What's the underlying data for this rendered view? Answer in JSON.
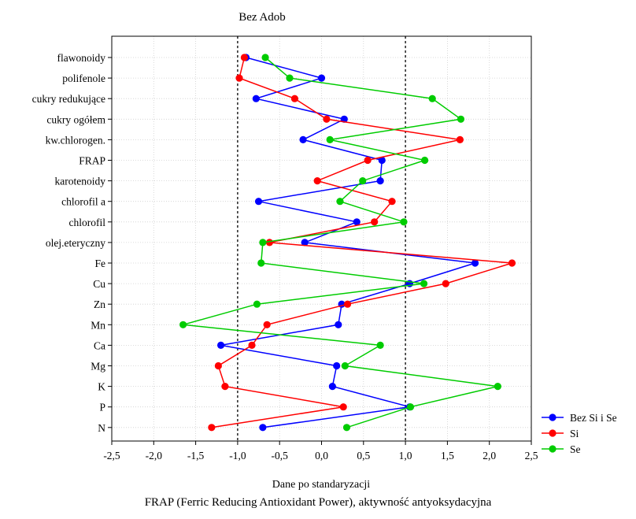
{
  "chart_data": {
    "type": "line",
    "orientation": "horizontal-categories-on-y",
    "title": "Bez Adob",
    "xlabel": "Dane po standaryzacji",
    "ylabel": "",
    "xlim": [
      -2.5,
      2.5
    ],
    "x_ticks": [
      "-2,5",
      "-2,0",
      "-1,5",
      "-1,0",
      "-0,5",
      "0,0",
      "0,5",
      "1,0",
      "1,5",
      "2,0",
      "2,5"
    ],
    "reference_lines": [
      -1.0,
      1.0
    ],
    "grid": true,
    "legend_position": "right-bottom",
    "categories": [
      "flawonoidy",
      "polifenole",
      "cukry redukujące",
      "cukry ogółem",
      "kw.chlorogen.",
      "FRAP",
      "karotenoidy",
      "chlorofil a",
      "chlorofil",
      "olej.eteryczny",
      "Fe",
      "Cu",
      "Zn",
      "Mn",
      "Ca",
      "Mg",
      "K",
      "P",
      "N"
    ],
    "series": [
      {
        "name": "Bez Si i Se",
        "color": "#0000ff",
        "values": [
          -0.9,
          0.0,
          -0.78,
          0.27,
          -0.22,
          0.72,
          0.7,
          -0.75,
          0.42,
          -0.2,
          1.83,
          1.05,
          0.24,
          0.2,
          -1.2,
          0.18,
          0.13,
          1.05,
          -0.7
        ]
      },
      {
        "name": "Si",
        "color": "#ff0000",
        "values": [
          -0.92,
          -0.98,
          -0.32,
          0.06,
          1.65,
          0.55,
          -0.05,
          0.84,
          0.63,
          -0.62,
          2.27,
          1.48,
          0.31,
          -0.65,
          -0.83,
          -1.23,
          -1.15,
          0.26,
          -1.31
        ]
      },
      {
        "name": "Se",
        "color": "#00cc00",
        "values": [
          -0.67,
          -0.38,
          1.32,
          1.66,
          0.1,
          1.23,
          0.49,
          0.22,
          0.98,
          -0.7,
          -0.72,
          1.22,
          -0.77,
          -1.65,
          0.7,
          0.28,
          2.1,
          1.06,
          0.3
        ]
      }
    ],
    "caption": "FRAP (Ferric Reducing Antioxidant Power), aktywność antyoksydacyjna"
  }
}
